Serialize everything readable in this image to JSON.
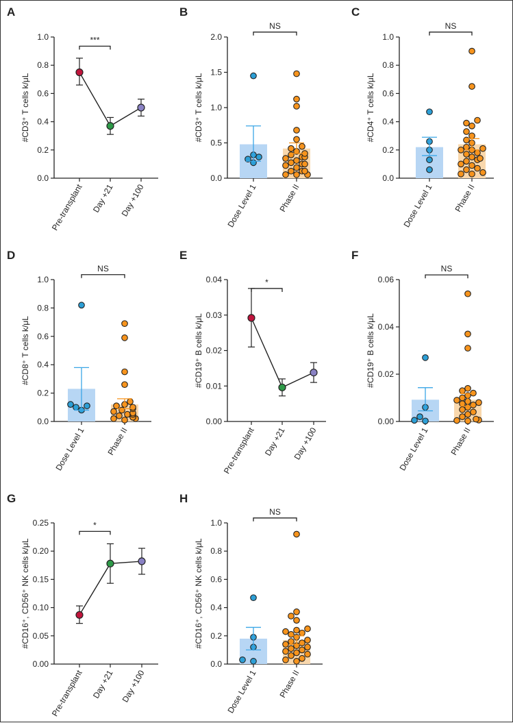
{
  "colors": {
    "pre": "#c0143c",
    "day21": "#2e9a48",
    "day100": "#8a82c4",
    "dose_fill": "#b7d6f4",
    "dose_point": "#2d9fd6",
    "dose_err": "#3aa6e6",
    "phase_fill": "#f9d8ad",
    "phase_point": "#f7941d",
    "axis": "#222222"
  },
  "chart_data": [
    {
      "id": "A",
      "letter": "A",
      "type": "scatter",
      "categories": [
        "Pre-transplant",
        "Day +21",
        "Day +100"
      ],
      "ylabel": "#CD3⁺ T cells k/μL",
      "ylim": [
        0,
        1.0
      ],
      "yticks": [
        "0.0",
        "0.2",
        "0.4",
        "0.6",
        "0.8",
        "1.0"
      ],
      "means": [
        0.75,
        0.37,
        0.5
      ],
      "err_low": [
        0.66,
        0.31,
        0.44
      ],
      "err_high": [
        0.85,
        0.43,
        0.56
      ],
      "sig": {
        "label": "***",
        "from": 0,
        "to": 1,
        "y": 0.935
      }
    },
    {
      "id": "B",
      "letter": "B",
      "type": "bar",
      "categories": [
        "Dose Level 1",
        "Phase II"
      ],
      "ylabel": "#CD3⁺ T cells k/μL",
      "ylim": [
        0,
        2.0
      ],
      "yticks": [
        "0.0",
        "0.5",
        "1.0",
        "1.5",
        "2.0"
      ],
      "bar_values": [
        0.48,
        0.42
      ],
      "err_low": [
        0.24,
        0.35
      ],
      "err_high": [
        0.74,
        0.5
      ],
      "points": [
        [
          0.22,
          0.27,
          0.33,
          0.3,
          1.45
        ],
        [
          0.05,
          0.05,
          0.05,
          0.1,
          0.1,
          0.1,
          0.15,
          0.18,
          0.2,
          0.2,
          0.22,
          0.25,
          0.28,
          0.3,
          0.3,
          0.33,
          0.35,
          0.38,
          0.42,
          0.45,
          0.55,
          0.68,
          1.02,
          1.12,
          1.48
        ]
      ],
      "sig": {
        "label": "NS",
        "from": 0,
        "to": 1,
        "y": 2.07
      }
    },
    {
      "id": "C",
      "letter": "C",
      "type": "bar",
      "categories": [
        "Dose Level 1",
        "Phase II"
      ],
      "ylabel": "#CD4⁺ T cells k/μL",
      "ylim": [
        0,
        1.0
      ],
      "yticks": [
        "0.0",
        "0.2",
        "0.4",
        "0.6",
        "0.8",
        "1.0"
      ],
      "bar_values": [
        0.22,
        0.24
      ],
      "err_low": [
        0.16,
        0.2
      ],
      "err_high": [
        0.29,
        0.28
      ],
      "points": [
        [
          0.06,
          0.13,
          0.2,
          0.26,
          0.47
        ],
        [
          0.03,
          0.03,
          0.04,
          0.06,
          0.07,
          0.09,
          0.1,
          0.12,
          0.13,
          0.14,
          0.15,
          0.17,
          0.18,
          0.2,
          0.2,
          0.21,
          0.22,
          0.25,
          0.27,
          0.3,
          0.33,
          0.37,
          0.39,
          0.41,
          0.65,
          0.9
        ]
      ],
      "sig": {
        "label": "NS",
        "from": 0,
        "to": 1,
        "y": 1.035
      }
    },
    {
      "id": "D",
      "letter": "D",
      "type": "bar",
      "categories": [
        "Dose Level 1",
        "Phase II"
      ],
      "ylabel": "#CD8⁺ T cells k/μL",
      "ylim": [
        0,
        1.0
      ],
      "yticks": [
        "0.0",
        "0.2",
        "0.4",
        "0.6",
        "0.8",
        "1.0"
      ],
      "bar_values": [
        0.23,
        0.12
      ],
      "err_low": [
        0.08,
        0.09
      ],
      "err_high": [
        0.38,
        0.16
      ],
      "points": [
        [
          0.08,
          0.1,
          0.11,
          0.12,
          0.82
        ],
        [
          0.01,
          0.02,
          0.02,
          0.03,
          0.03,
          0.04,
          0.05,
          0.05,
          0.06,
          0.07,
          0.08,
          0.09,
          0.1,
          0.11,
          0.12,
          0.14,
          0.26,
          0.35,
          0.59,
          0.69
        ]
      ],
      "sig": {
        "label": "NS",
        "from": 0,
        "to": 1,
        "y": 1.035
      }
    },
    {
      "id": "E",
      "letter": "E",
      "type": "scatter",
      "categories": [
        "Pre-transplant",
        "Day +21",
        "Day +100"
      ],
      "ylabel": "#CD19⁺ B cells k/μL",
      "ylim": [
        0,
        0.04
      ],
      "yticks": [
        "0.00",
        "0.01",
        "0.02",
        "0.03",
        "0.04"
      ],
      "means": [
        0.0292,
        0.0096,
        0.0138
      ],
      "err_low": [
        0.021,
        0.0072,
        0.011
      ],
      "err_high": [
        0.0375,
        0.012,
        0.0166
      ],
      "sig": {
        "label": "*",
        "from": 0,
        "to": 1,
        "y": 0.0375
      }
    },
    {
      "id": "F",
      "letter": "F",
      "type": "bar",
      "categories": [
        "Dose Level 1",
        "Phase II"
      ],
      "ylabel": "#CD19⁺ B cells k/μL",
      "ylim": [
        0,
        0.06
      ],
      "yticks": [
        "0.00",
        "0.02",
        "0.04",
        "0.06"
      ],
      "bar_values": [
        0.0092,
        0.0092
      ],
      "err_low": [
        0.0045,
        0.0065
      ],
      "err_high": [
        0.0143,
        0.0118
      ],
      "points": [
        [
          0.0002,
          0.0005,
          0.002,
          0.006,
          0.027
        ],
        [
          0.0002,
          0.0004,
          0.0006,
          0.001,
          0.002,
          0.003,
          0.004,
          0.005,
          0.006,
          0.007,
          0.0075,
          0.008,
          0.0085,
          0.009,
          0.01,
          0.011,
          0.012,
          0.013,
          0.014,
          0.031,
          0.037,
          0.054
        ]
      ],
      "sig": {
        "label": "NS",
        "from": 0,
        "to": 1,
        "y": 0.062
      }
    },
    {
      "id": "G",
      "letter": "G",
      "type": "scatter",
      "categories": [
        "Pre-transplant",
        "Day +21",
        "Day +100"
      ],
      "ylabel": "#CD16⁺, CD56⁺ NK cells k/μL",
      "ylim": [
        0,
        0.25
      ],
      "yticks": [
        "0.00",
        "0.05",
        "0.10",
        "0.15",
        "0.20",
        "0.25"
      ],
      "means": [
        0.087,
        0.178,
        0.182
      ],
      "err_low": [
        0.072,
        0.143,
        0.159
      ],
      "err_high": [
        0.103,
        0.213,
        0.205
      ],
      "sig": {
        "label": "*",
        "from": 0,
        "to": 1,
        "y": 0.235
      }
    },
    {
      "id": "H",
      "letter": "H",
      "type": "bar",
      "categories": [
        "Dose Level 1",
        "Phase II"
      ],
      "ylabel": "#CD16⁺, CD56⁺ NK cells k/μL",
      "ylim": [
        0,
        1.0
      ],
      "yticks": [
        "0.0",
        "0.2",
        "0.4",
        "0.6",
        "0.8",
        "1.0"
      ],
      "bar_values": [
        0.18,
        0.17
      ],
      "err_low": [
        0.1,
        0.14
      ],
      "err_high": [
        0.26,
        0.2
      ],
      "points": [
        [
          0.02,
          0.03,
          0.12,
          0.19,
          0.47
        ],
        [
          0.02,
          0.03,
          0.04,
          0.06,
          0.07,
          0.08,
          0.09,
          0.1,
          0.11,
          0.12,
          0.13,
          0.14,
          0.15,
          0.16,
          0.17,
          0.19,
          0.21,
          0.22,
          0.23,
          0.24,
          0.25,
          0.31,
          0.34,
          0.37,
          0.92
        ]
      ],
      "sig": {
        "label": "NS",
        "from": 0,
        "to": 1,
        "y": 1.035
      }
    }
  ]
}
